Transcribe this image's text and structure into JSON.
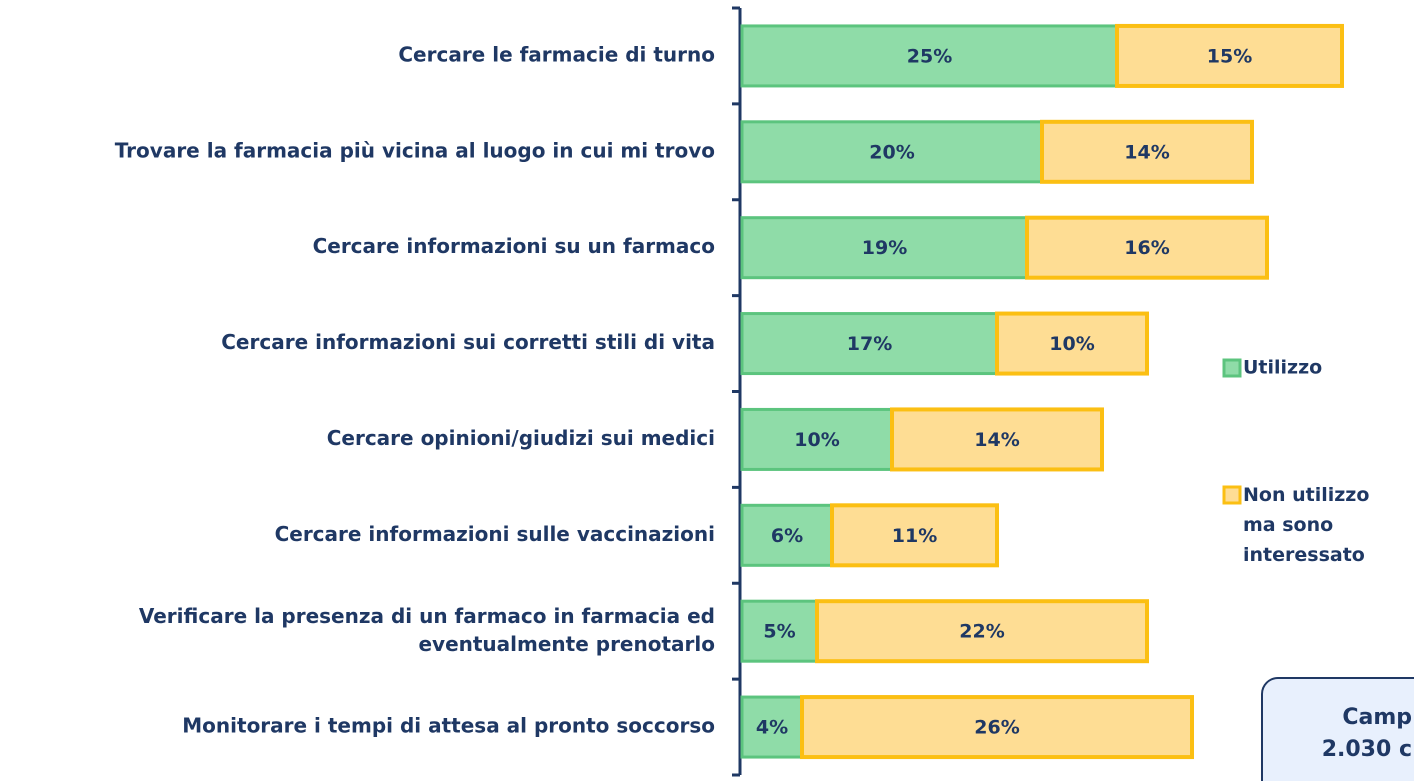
{
  "chart_data": {
    "type": "stacked-bar-horizontal",
    "categories": [
      "Cercare le farmacie di turno",
      "Trovare la farmacia più vicina al luogo in cui mi trovo",
      "Cercare informazioni su un farmaco",
      "Cercare informazioni sui corretti stili di vita",
      "Cercare opinioni/giudizi sui medici",
      "Cercare informazioni sulle vaccinazioni",
      "Verificare la presenza di un farmaco in farmacia ed\neventualmente prenotarlo",
      "Monitorare i tempi di attesa al pronto soccorso"
    ],
    "series": [
      {
        "name": "Utilizzo",
        "color": "#8fdca8",
        "border": "#5cc47e",
        "values": [
          25,
          20,
          19,
          17,
          10,
          6,
          5,
          4
        ],
        "value_labels": [
          "25%",
          "20%",
          "19%",
          "17%",
          "10%",
          "6%",
          "5%",
          "4%"
        ]
      },
      {
        "name": "Non utilizzo\nma sono\ninteressato",
        "color": "#fedd94",
        "border": "#fbbf13",
        "values": [
          15,
          14,
          16,
          10,
          14,
          11,
          22,
          26
        ],
        "value_labels": [
          "15%",
          "14%",
          "16%",
          "10%",
          "14%",
          "11%",
          "22%",
          "26%"
        ]
      }
    ],
    "annotation": [
      "Camp",
      "2.030 c"
    ]
  }
}
